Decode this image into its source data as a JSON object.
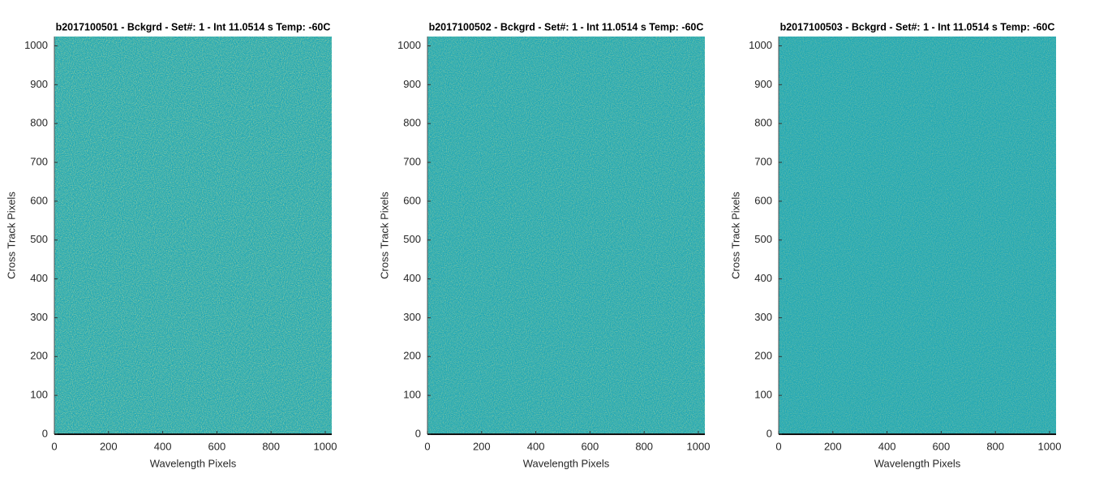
{
  "chart_data": [
    {
      "type": "heatmap",
      "title": "b2017100501 - Bckgrd - Set#: 1 - Int 11.0514 s Temp: -60C",
      "xlabel": "Wavelength Pixels",
      "ylabel": "Cross Track Pixels",
      "xlim": [
        0,
        1024
      ],
      "ylim": [
        0,
        1024
      ],
      "xticks": [
        0,
        200,
        400,
        600,
        800,
        1000
      ],
      "yticks": [
        0,
        100,
        200,
        300,
        400,
        500,
        600,
        700,
        800,
        900,
        1000
      ]
    },
    {
      "type": "heatmap",
      "title": "b2017100502 - Bckgrd - Set#: 1 - Int 11.0514 s Temp: -60C",
      "xlabel": "Wavelength Pixels",
      "ylabel": "Cross Track Pixels",
      "xlim": [
        0,
        1024
      ],
      "ylim": [
        0,
        1024
      ],
      "xticks": [
        0,
        200,
        400,
        600,
        800,
        1000
      ],
      "yticks": [
        0,
        100,
        200,
        300,
        400,
        500,
        600,
        700,
        800,
        900,
        1000
      ]
    },
    {
      "type": "heatmap",
      "title": "b2017100503 - Bckgrd - Set#: 1 - Int 11.0514 s Temp: -60C",
      "xlabel": "Wavelength Pixels",
      "ylabel": "Cross Track Pixels",
      "xlim": [
        0,
        1024
      ],
      "ylim": [
        0,
        1024
      ],
      "xticks": [
        0,
        200,
        400,
        600,
        800,
        1000
      ],
      "yticks": [
        0,
        100,
        200,
        300,
        400,
        500,
        600,
        700,
        800,
        900,
        1000
      ]
    }
  ]
}
